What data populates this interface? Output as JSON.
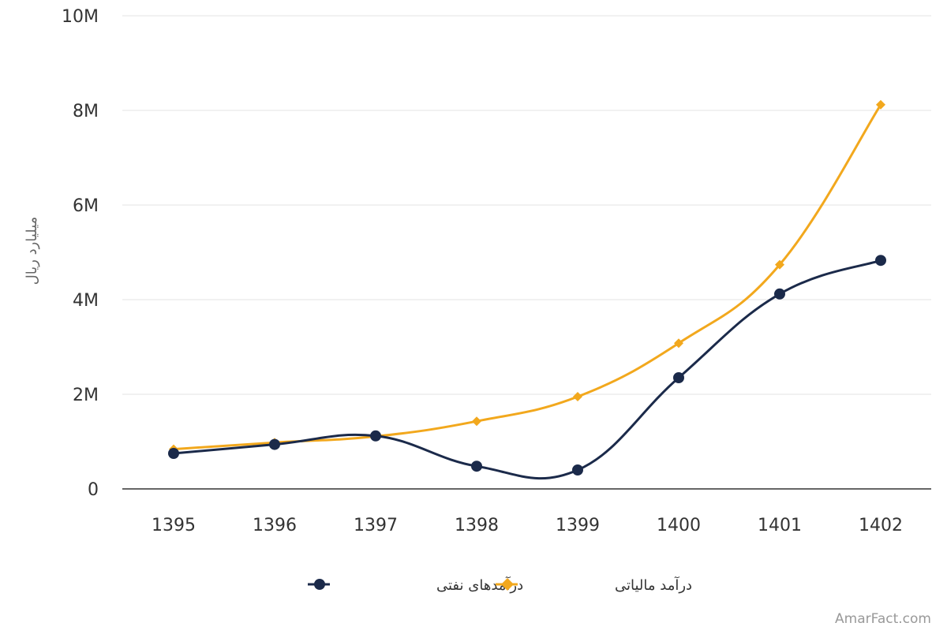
{
  "chart_data": {
    "type": "line",
    "title": "",
    "xlabel": "",
    "ylabel": "میلیارد ریال",
    "x": [
      "1395",
      "1396",
      "1397",
      "1398",
      "1399",
      "1400",
      "1401",
      "1402"
    ],
    "ylim": [
      0,
      10000000
    ],
    "yticks": [
      0,
      2000000,
      4000000,
      6000000,
      8000000,
      10000000
    ],
    "ytick_labels": [
      "0",
      "2M",
      "4M",
      "6M",
      "8M",
      "10M"
    ],
    "grid": true,
    "legend_position": "bottom",
    "series": [
      {
        "name": "درآمدهای نفتی",
        "color": "#1b2a4a",
        "marker": "circle",
        "values": [
          750000,
          940000,
          1120000,
          480000,
          400000,
          2350000,
          4120000,
          4830000
        ]
      },
      {
        "name": "درآمد مالیاتی",
        "color": "#f2a81d",
        "marker": "diamond",
        "values": [
          840000,
          980000,
          1110000,
          1430000,
          1950000,
          3080000,
          4740000,
          8120000
        ]
      }
    ]
  },
  "watermark": "AmarFact.com"
}
